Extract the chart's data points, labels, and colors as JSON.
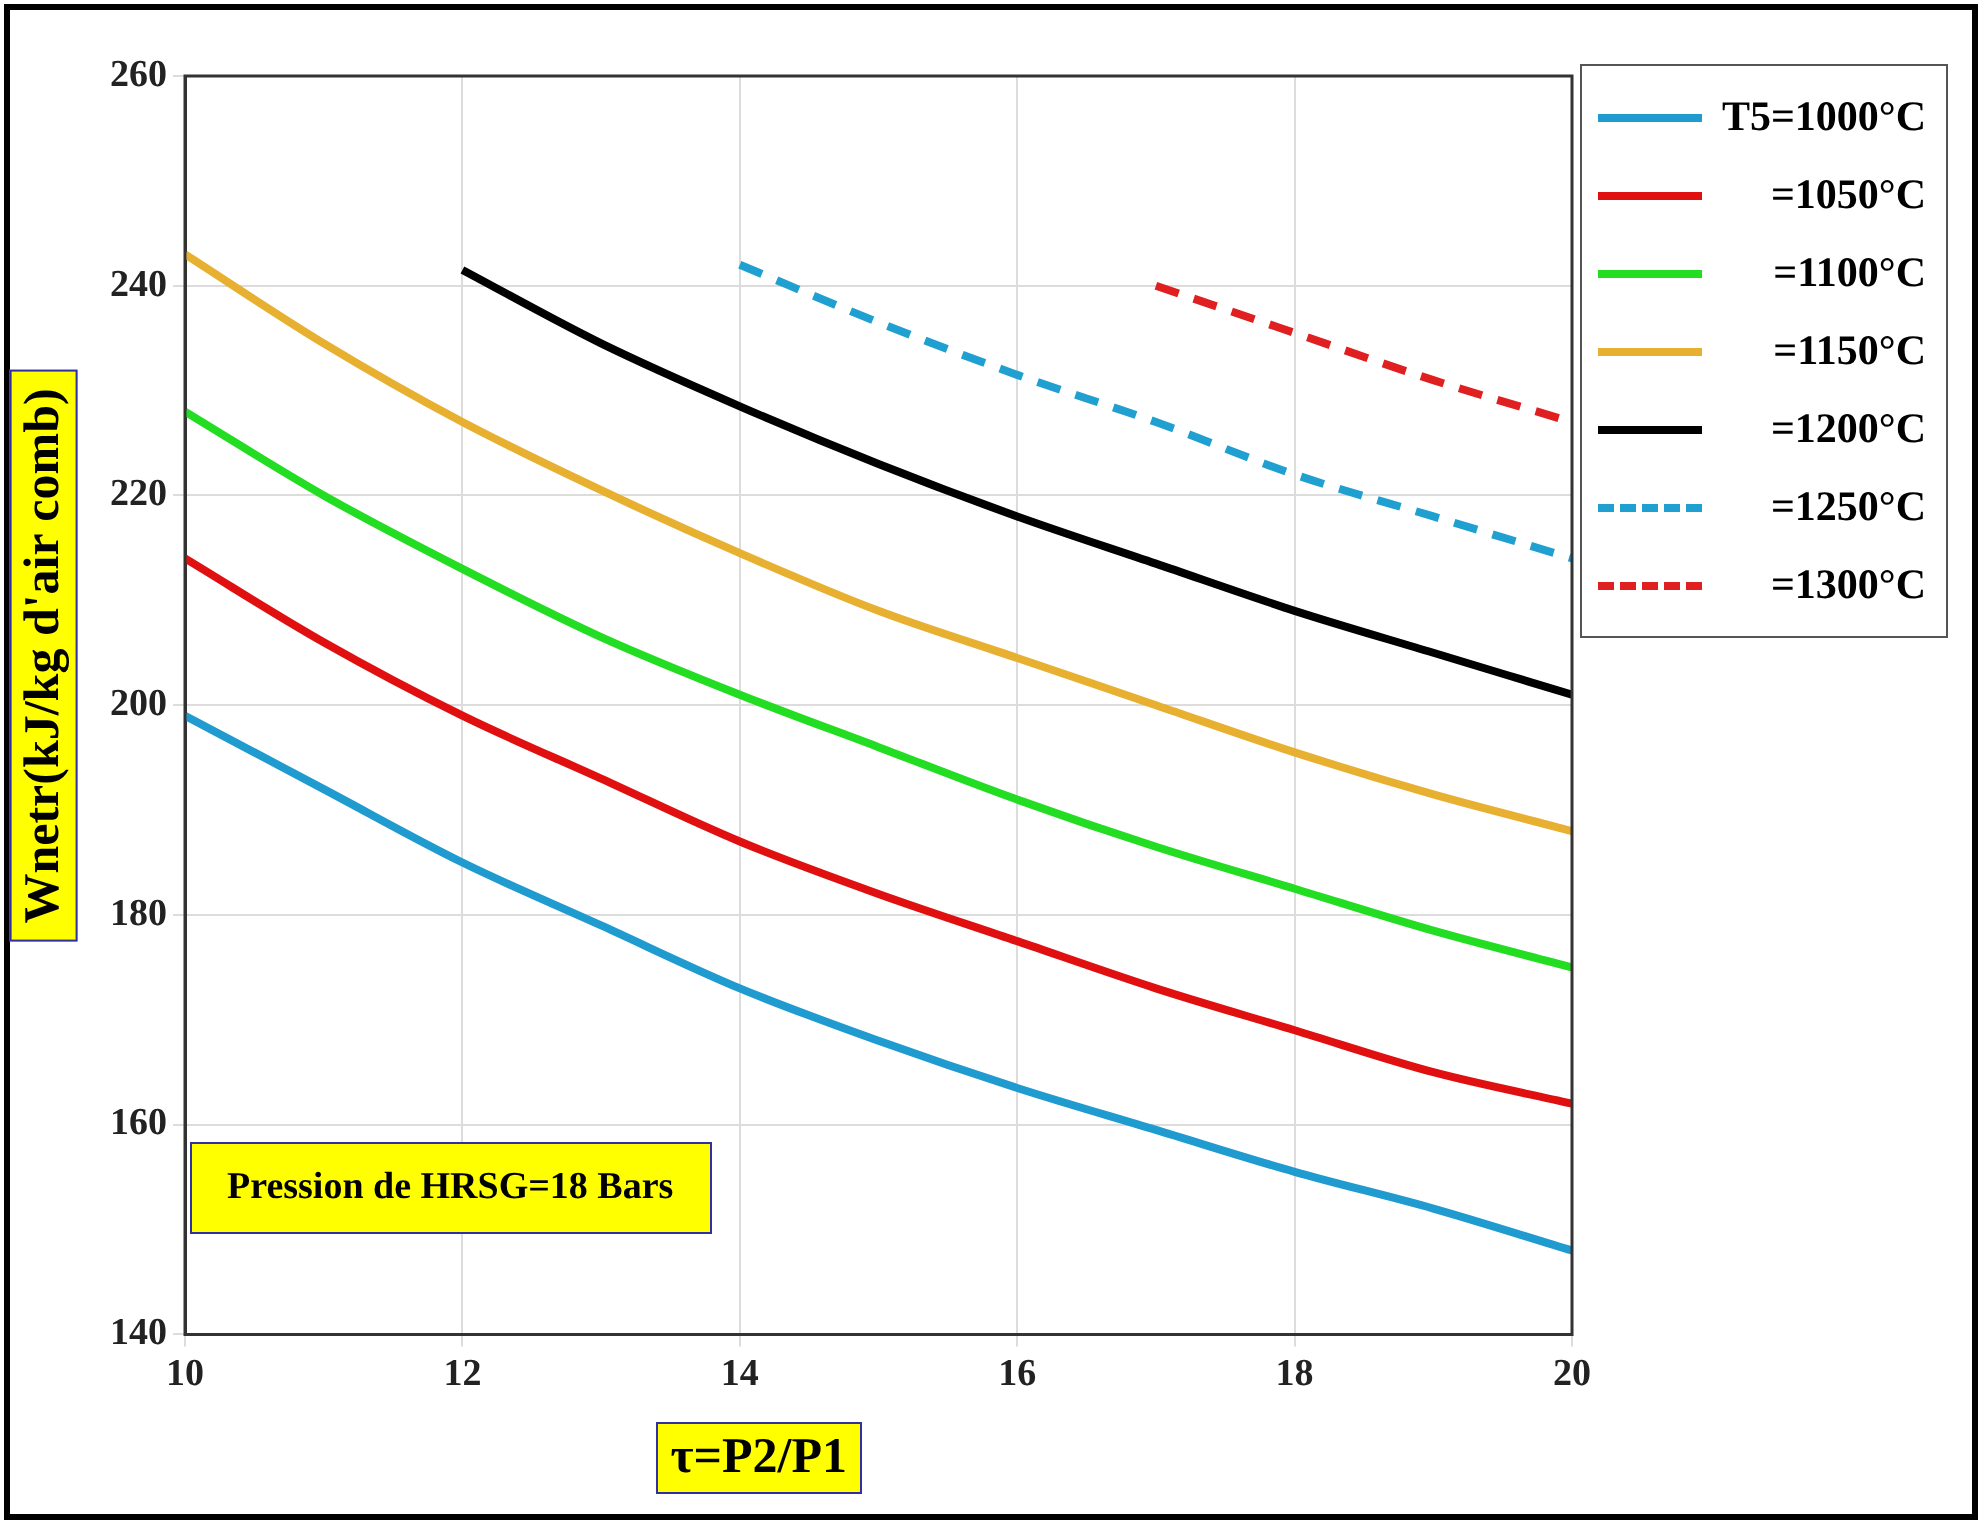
{
  "chart_data": {
    "type": "line",
    "xlabel": "τ=P2/P1",
    "ylabel": "Wnetr(kJ/kg d'air comb)",
    "annotations": [
      "Pression de HRSG=18 Bars"
    ],
    "x": [
      10,
      11,
      12,
      13,
      14,
      15,
      16,
      17,
      18,
      19,
      20
    ],
    "series": [
      {
        "name": "T5=1000°C",
        "color": "#1f9bd0",
        "values": [
          199,
          192,
          185,
          179,
          173,
          168,
          163.5,
          159.5,
          155.5,
          152,
          148
        ]
      },
      {
        "name": "=1050°C",
        "color": "#e01010",
        "values": [
          214,
          206,
          199,
          193,
          187,
          182,
          177.5,
          173,
          169,
          165,
          162
        ]
      },
      {
        "name": "=1100°C",
        "color": "#22dd22",
        "values": [
          228,
          220,
          213,
          206.5,
          201,
          196,
          191,
          186.5,
          182.5,
          178.5,
          175
        ]
      },
      {
        "name": "=1150°C",
        "color": "#e8b030",
        "values": [
          243,
          234.5,
          227,
          220.5,
          214.5,
          209,
          204.5,
          200,
          195.5,
          191.5,
          188
        ]
      },
      {
        "name": "=1200°C",
        "color": "#000000",
        "values": [
          null,
          null,
          241.5,
          234.5,
          228.5,
          223,
          218,
          213.5,
          209,
          205,
          201
        ]
      },
      {
        "name": "=1250°C",
        "color": "#1fa0d0",
        "line_style": "dashed",
        "values": [
          null,
          null,
          null,
          null,
          242,
          236.5,
          231.5,
          227,
          222,
          218,
          214
        ]
      },
      {
        "name": "=1300°C",
        "color": "#e02020",
        "line_style": "dashed",
        "values": [
          null,
          null,
          null,
          null,
          null,
          null,
          null,
          240,
          235.5,
          231,
          227
        ]
      }
    ],
    "xlim": [
      10,
      20
    ],
    "xticks": [
      10,
      12,
      14,
      16,
      18,
      20
    ],
    "ylim": [
      140,
      260
    ],
    "yticks": [
      140,
      160,
      180,
      200,
      220,
      240,
      260
    ],
    "grid": true,
    "legend": "top right",
    "line_style": "solid",
    "marker": "none"
  }
}
